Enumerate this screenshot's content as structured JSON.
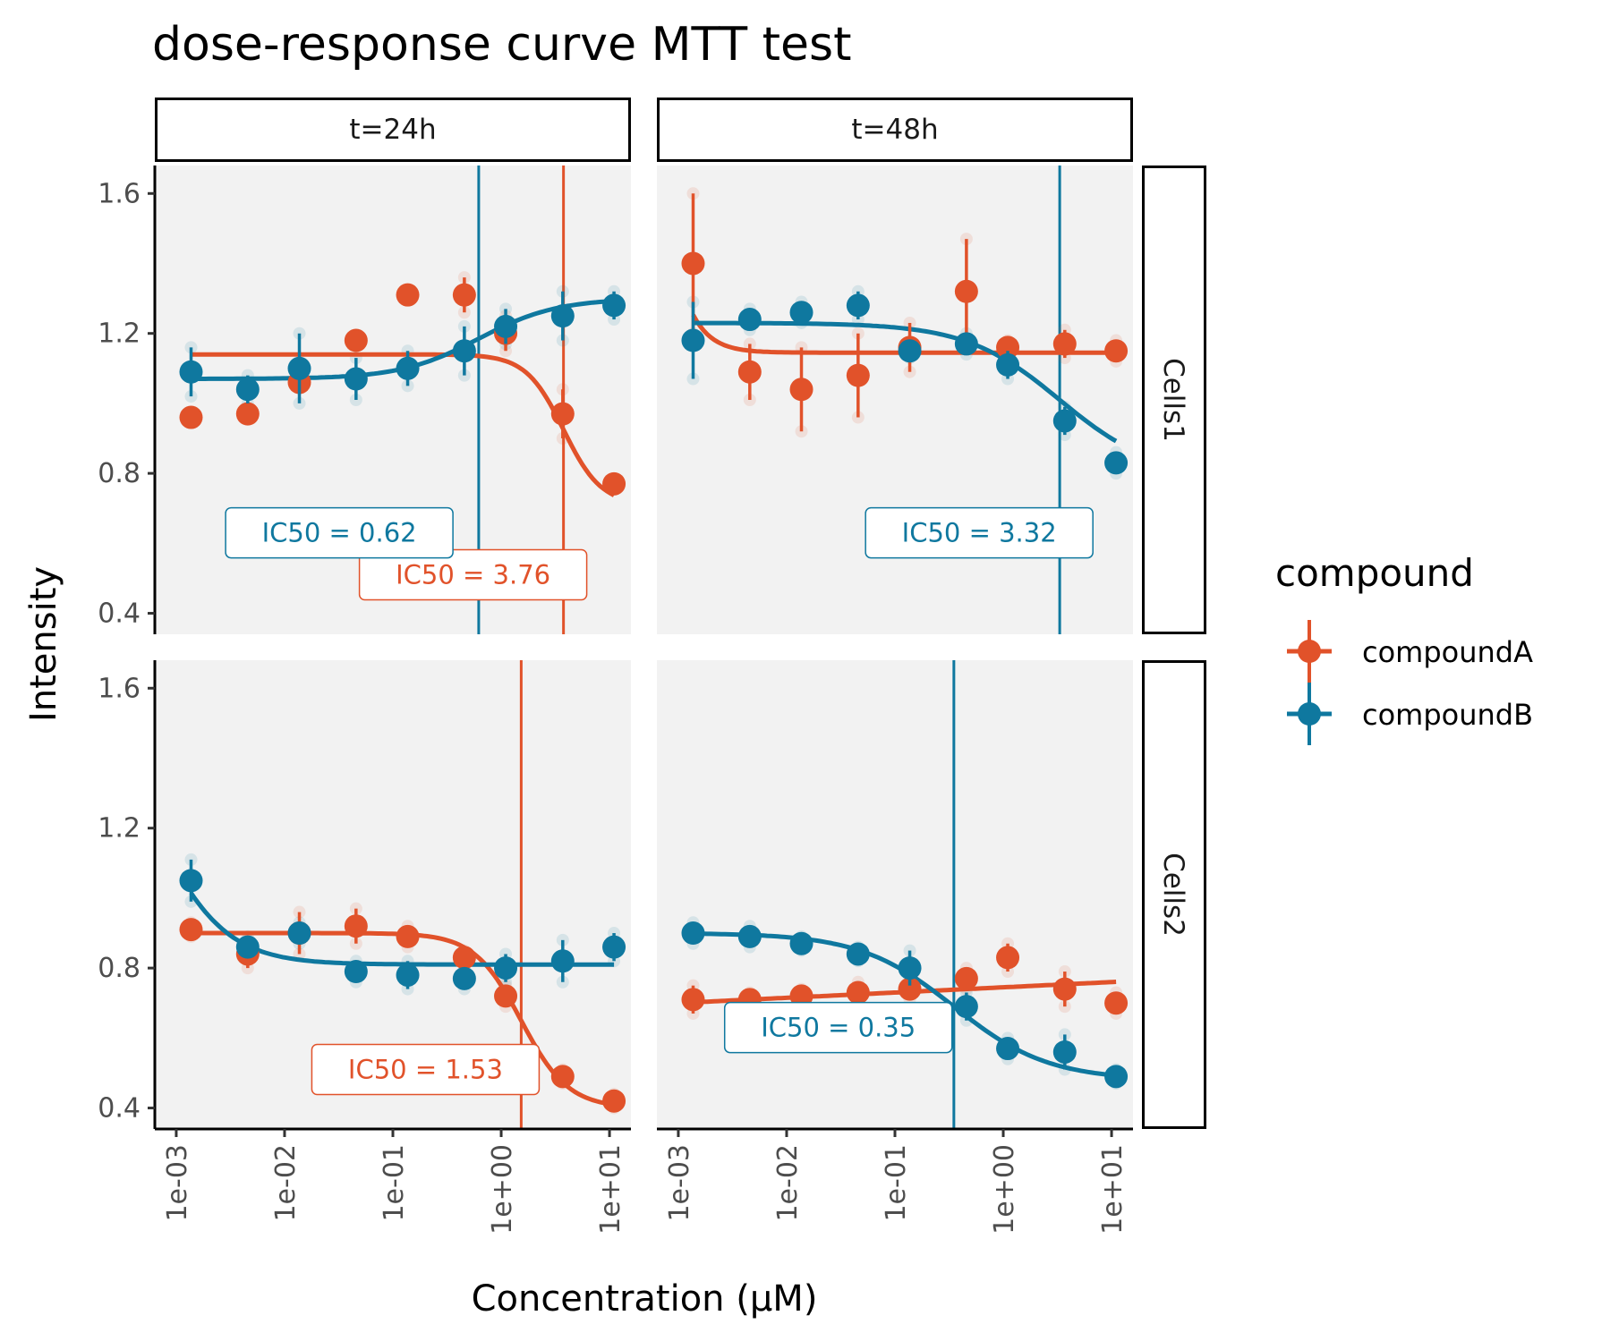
{
  "chart_data": {
    "type": "scatter",
    "title": "dose-response curve MTT test",
    "xlabel": "Concentration (µM)",
    "ylabel": "Intensity",
    "x_scale": "log10",
    "xlim": [
      0.001,
      10
    ],
    "x_ticks": [
      0.001,
      0.01,
      0.1,
      1,
      10
    ],
    "x_tick_labels": [
      "1e-03",
      "1e-02",
      "1e-01",
      "1e+00",
      "1e+01"
    ],
    "ylim": [
      0.34,
      1.68
    ],
    "y_ticks": [
      0.4,
      0.8,
      1.2,
      1.6
    ],
    "y_tick_labels": [
      "0.4",
      "0.8",
      "1.2",
      "1.6"
    ],
    "legend": {
      "title": "compound",
      "placement": "right",
      "entries": [
        {
          "label": "compoundA",
          "color": "#E1522A"
        },
        {
          "label": "compoundB",
          "color": "#0F789F"
        }
      ]
    },
    "colors": {
      "compoundA": "#E1522A",
      "compoundB": "#0F789F",
      "panel_bg": "#F2F2F2"
    },
    "col_strips": [
      "t=24h",
      "t=48h"
    ],
    "row_strips": [
      "Cells1",
      "Cells2"
    ],
    "x_values": [
      0.00137,
      0.00457,
      0.0137,
      0.0457,
      0.137,
      0.457,
      1.1,
      3.7,
      11
    ],
    "panels": [
      {
        "col": 0,
        "row": 0,
        "series": [
          {
            "name": "compoundA",
            "color": "#E1522A",
            "means": [
              0.96,
              0.97,
              1.06,
              1.18,
              1.31,
              1.31,
              1.2,
              0.97,
              0.77
            ],
            "errors": [
              0,
              0,
              0,
              0,
              0,
              0.05,
              0.05,
              0.07,
              0
            ],
            "fit": {
              "top": 1.14,
              "bottom": 0.71,
              "ic50": 3.76,
              "hill": 2.5
            },
            "ic50_label": "IC50 =  3.76",
            "label_x": 0.55,
            "label_y": 0.51
          },
          {
            "name": "compoundB",
            "color": "#0F789F",
            "means": [
              1.09,
              1.04,
              1.1,
              1.07,
              1.1,
              1.15,
              1.22,
              1.25,
              1.28
            ],
            "errors": [
              0.07,
              0.04,
              0.1,
              0.06,
              0.05,
              0.07,
              0.05,
              0.07,
              0.04
            ],
            "fit": {
              "top": 1.07,
              "bottom": 1.3,
              "ic50": 0.62,
              "hill": 1.2
            },
            "ic50_label": "IC50 =  0.62",
            "label_x": 0.032,
            "label_y": 0.63
          }
        ]
      },
      {
        "col": 1,
        "row": 0,
        "series": [
          {
            "name": "compoundA",
            "color": "#E1522A",
            "means": [
              1.4,
              1.09,
              1.04,
              1.08,
              1.16,
              1.32,
              1.16,
              1.17,
              1.15
            ],
            "errors": [
              0.2,
              0.08,
              0.12,
              0.12,
              0.07,
              0.15,
              0.02,
              0.04,
              0.03
            ],
            "fit": {
              "top": 3.0,
              "bottom": 1.145,
              "ic50": 0.00045,
              "hill": 2.5
            },
            "ic50_label": ""
          },
          {
            "name": "compoundB",
            "color": "#0F789F",
            "means": [
              1.18,
              1.24,
              1.26,
              1.28,
              1.15,
              1.17,
              1.11,
              0.95,
              0.83
            ],
            "errors": [
              0.11,
              0.03,
              0.03,
              0.04,
              0.02,
              0.03,
              0.04,
              0.04,
              0.03
            ],
            "fit": {
              "top": 1.23,
              "bottom": 0.79,
              "ic50": 3.32,
              "hill": 1.0
            },
            "ic50_label": "IC50 =  3.32",
            "label_x": 0.6,
            "label_y": 0.63
          }
        ]
      },
      {
        "col": 0,
        "row": 1,
        "series": [
          {
            "name": "compoundA",
            "color": "#E1522A",
            "means": [
              0.91,
              0.84,
              0.9,
              0.92,
              0.89,
              0.83,
              0.72,
              0.49,
              0.42
            ],
            "errors": [
              0.02,
              0.04,
              0.06,
              0.05,
              0.03,
              0.02,
              0.03,
              0.02,
              0.02
            ],
            "fit": {
              "top": 0.9,
              "bottom": 0.4,
              "ic50": 1.53,
              "hill": 2.0
            },
            "ic50_label": "IC50 =  1.53",
            "label_x": 0.2,
            "label_y": 0.51
          },
          {
            "name": "compoundB",
            "color": "#0F789F",
            "means": [
              1.05,
              0.86,
              0.9,
              0.79,
              0.78,
              0.77,
              0.8,
              0.82,
              0.86
            ],
            "errors": [
              0.06,
              0.03,
              0.03,
              0.03,
              0.04,
              0.03,
              0.04,
              0.06,
              0.04
            ],
            "fit": {
              "top": 1.6,
              "bottom": 0.81,
              "ic50": 0.00061,
              "hill": 1.3
            },
            "ic50_label": ""
          }
        ]
      },
      {
        "col": 1,
        "row": 1,
        "series": [
          {
            "name": "compoundA",
            "color": "#E1522A",
            "means": [
              0.71,
              0.71,
              0.72,
              0.73,
              0.74,
              0.77,
              0.83,
              0.74,
              0.7
            ],
            "errors": [
              0.04,
              0.02,
              0.02,
              0.03,
              0.03,
              0.03,
              0.04,
              0.05,
              0.03
            ],
            "fit": {
              "type": "linear",
              "a": 0.7,
              "b": 0.76
            },
            "ic50_label": ""
          },
          {
            "name": "compoundB",
            "color": "#0F789F",
            "means": [
              0.9,
              0.89,
              0.87,
              0.84,
              0.8,
              0.69,
              0.57,
              0.56,
              0.49
            ],
            "errors": [
              0.03,
              0.03,
              0.02,
              0.02,
              0.05,
              0.04,
              0.03,
              0.05,
              0.02
            ],
            "fit": {
              "top": 0.9,
              "bottom": 0.48,
              "ic50": 0.35,
              "hill": 1.0
            },
            "ic50_label": "IC50 =  0.35",
            "label_x": 0.03,
            "label_y": 0.63
          }
        ]
      }
    ]
  }
}
